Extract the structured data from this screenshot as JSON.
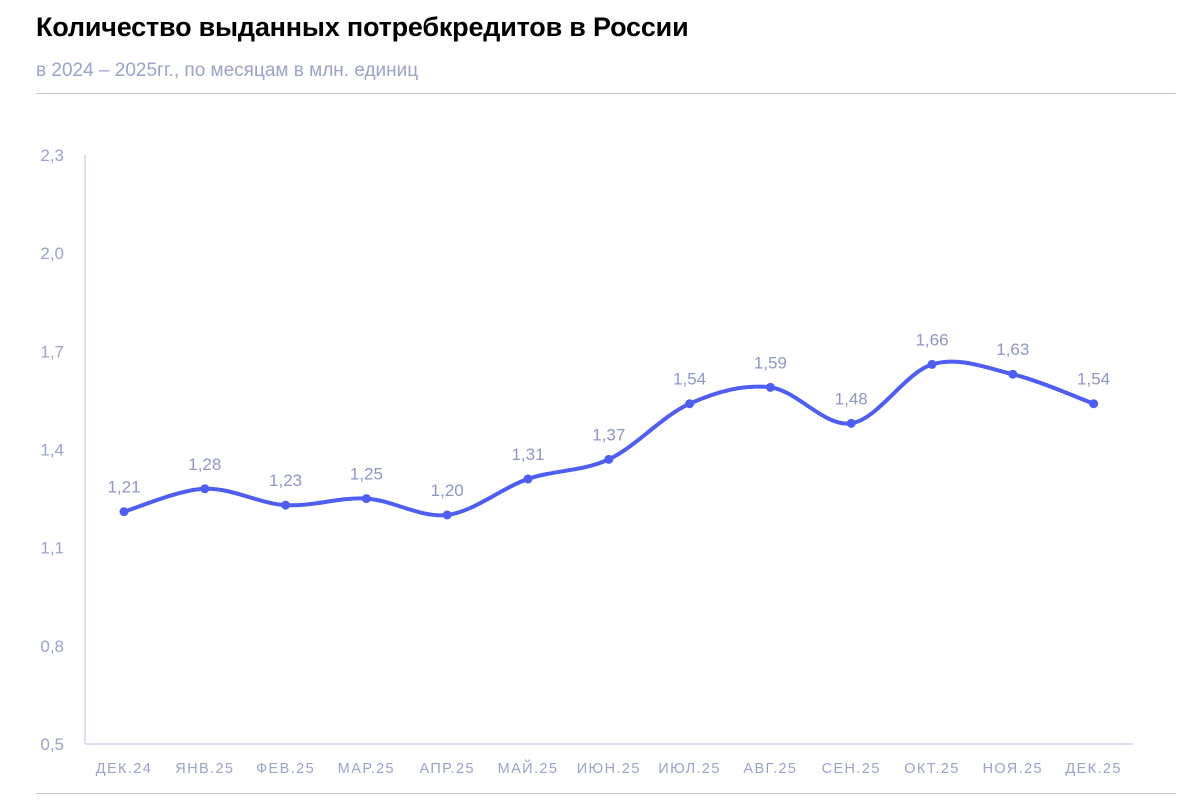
{
  "header": {
    "title": "Количество выданных потребкредитов в России",
    "subtitle": "в 2024 – 2025гг., по месяцам в млн. единиц"
  },
  "colors": {
    "line": "#4d5ef0",
    "axis": "#b9bfdf",
    "tick_text": "#9aa3c8",
    "label_text": "#8f97c4"
  },
  "chart_data": {
    "type": "line",
    "title": "Количество выданных потребкредитов в России",
    "subtitle": "в 2024 – 2025гг., по месяцам в млн. единиц",
    "categories": [
      "ДЕК.24",
      "ЯНВ.25",
      "ФЕВ.25",
      "МАР.25",
      "АПР.25",
      "МАЙ.25",
      "ИЮН.25",
      "ИЮЛ.25",
      "АВГ.25",
      "СЕН.25",
      "ОКТ.25",
      "НОЯ.25",
      "ДЕК.25"
    ],
    "values": [
      1.21,
      1.28,
      1.23,
      1.25,
      1.2,
      1.31,
      1.37,
      1.54,
      1.59,
      1.48,
      1.66,
      1.63,
      1.54
    ],
    "value_labels": [
      "1,21",
      "1,28",
      "1,23",
      "1,25",
      "1,20",
      "1,31",
      "1,37",
      "1,54",
      "1,59",
      "1,48",
      "1,66",
      "1,63",
      "1,54"
    ],
    "yticks": [
      0.5,
      0.8,
      1.1,
      1.4,
      1.7,
      2.0,
      2.3
    ],
    "ytick_labels": [
      "0,5",
      "0,8",
      "1,1",
      "1,4",
      "1,7",
      "2,0",
      "2,3"
    ],
    "ylim": [
      0.5,
      2.3
    ],
    "grid": false,
    "smooth": true,
    "legend": "none"
  }
}
